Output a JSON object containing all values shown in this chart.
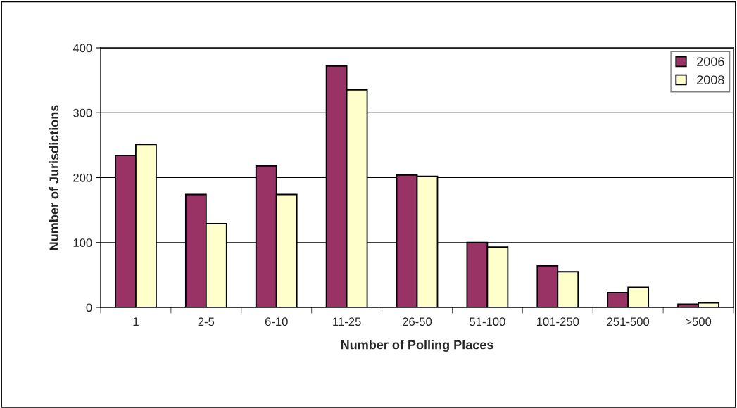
{
  "chart_data": {
    "type": "bar",
    "xlabel": "Number of Polling Places",
    "ylabel": "Number of Jurisdictions",
    "categories": [
      "1",
      "2-5",
      "6-10",
      "11-25",
      "26-50",
      "51-100",
      "101-250",
      "251-500",
      ">500"
    ],
    "series": [
      {
        "name": "2006",
        "color": "#993366",
        "values": [
          234,
          174,
          218,
          372,
          204,
          100,
          64,
          23,
          5
        ]
      },
      {
        "name": "2008",
        "color": "#ffffcc",
        "values": [
          251,
          129,
          174,
          335,
          202,
          93,
          55,
          31,
          7
        ]
      }
    ],
    "ylim": [
      0,
      400
    ],
    "yticks": [
      0,
      100,
      200,
      300,
      400
    ],
    "grid": "y",
    "legend": "top right"
  }
}
